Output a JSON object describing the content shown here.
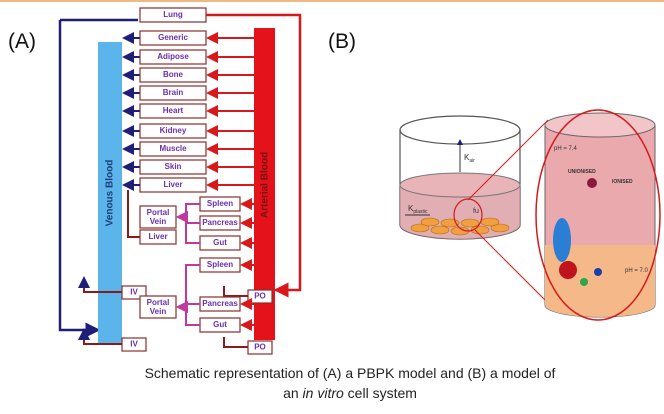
{
  "panel_a": {
    "tag": "(A)",
    "venous_label": "Venous Blood",
    "arterial_label": "Arterial Blood",
    "organs": [
      "Lung",
      "Generic",
      "Adipose",
      "Bone",
      "Brain",
      "Heart",
      "Kidney",
      "Muscle",
      "Skin",
      "Liver"
    ],
    "gut_group_1": {
      "portal_vein": [
        "Portal",
        "Vein"
      ],
      "liver": "Liver",
      "spleen": "Spleen",
      "pancreas": "Pancreas",
      "gut": "Gut",
      "iv": "IV",
      "po": "PO"
    },
    "gut_group_2": {
      "portal_vein": [
        "Portal",
        "Vein"
      ],
      "spleen": "Spleen",
      "pancreas": "Pancreas",
      "gut": "Gut",
      "iv": "IV",
      "po": "PO"
    }
  },
  "panel_b": {
    "tag": "(B)",
    "ph_top": "pH = 7.4",
    "ph_bottom": "pH = 7.0",
    "unionised": "UNIONISED",
    "ionised": "IONISED",
    "k_air": {
      "main": "K",
      "sub": "air"
    },
    "k_plastic": {
      "main": "K",
      "sub": "plastic"
    },
    "fu": "fu"
  },
  "caption": {
    "line1": "Schematic representation of (A) a PBPK model and (B) a model of",
    "pre": "an ",
    "italic": "in vitro",
    "post": " cell system"
  }
}
